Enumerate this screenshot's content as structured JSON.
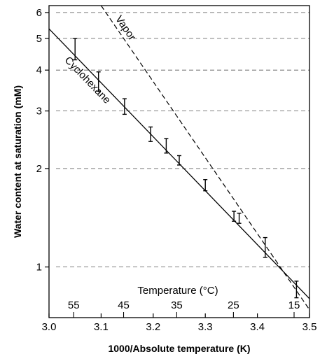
{
  "chart_data": {
    "type": "scatter",
    "xlabel": "1000/Absolute temperature (K)",
    "ylabel": "Water content at saturation (mM)",
    "xlim": [
      3.0,
      3.5
    ],
    "ylim": [
      0.7,
      6.3
    ],
    "y_scale": "log",
    "x_ticks": [
      "3.0",
      "3.1",
      "3.2",
      "3.3",
      "3.4",
      "3.5"
    ],
    "y_ticks": [
      "1",
      "2",
      "3",
      "4",
      "5",
      "6"
    ],
    "grid": "dashed horizontal lines at y ticks",
    "secondary_axis": {
      "label": "Temperature (°C)",
      "ticks": [
        "55",
        "45",
        "35",
        "25",
        "15"
      ]
    },
    "series": [
      {
        "name": "Cyclohexane",
        "style": "solid line with error bars",
        "line": [
          [
            3.0,
            5.35
          ],
          [
            3.5,
            0.8
          ]
        ],
        "points": [
          {
            "x": 3.05,
            "y": 4.65,
            "err": 0.35
          },
          {
            "x": 3.095,
            "y": 3.7,
            "err": 0.25
          },
          {
            "x": 3.145,
            "y": 3.1,
            "err": 0.17
          },
          {
            "x": 3.195,
            "y": 2.55,
            "err": 0.13
          },
          {
            "x": 3.225,
            "y": 2.35,
            "err": 0.12
          },
          {
            "x": 3.25,
            "y": 2.12,
            "err": 0.07
          },
          {
            "x": 3.3,
            "y": 1.78,
            "err": 0.07
          },
          {
            "x": 3.355,
            "y": 1.43,
            "err": 0.05
          },
          {
            "x": 3.365,
            "y": 1.41,
            "err": 0.05
          },
          {
            "x": 3.415,
            "y": 1.15,
            "err": 0.08
          },
          {
            "x": 3.475,
            "y": 0.855,
            "err": 0.05
          }
        ]
      },
      {
        "name": "Vapor",
        "style": "dashed line",
        "line": [
          [
            3.1,
            6.3
          ],
          [
            3.5,
            0.74
          ]
        ]
      }
    ]
  }
}
